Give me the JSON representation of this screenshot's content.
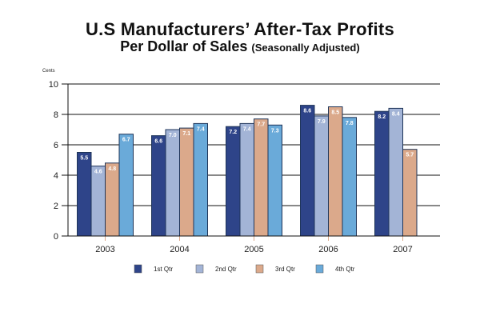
{
  "chart_data": {
    "type": "bar",
    "title": "U.S Manufacturers’ After-Tax Profits",
    "subtitle_main": "Per Dollar of Sales",
    "subtitle_note": "(Seasonally Adjusted)",
    "ylabel": "Cents",
    "xlabel": "",
    "ylim": [
      0,
      10
    ],
    "yticks": [
      0,
      2,
      4,
      6,
      8,
      10
    ],
    "grid": true,
    "legend_position": "bottom",
    "categories": [
      "2003",
      "2004",
      "2005",
      "2006",
      "2007"
    ],
    "series": [
      {
        "name": "1st Qtr",
        "color": "#2e4489",
        "values": [
          5.5,
          6.6,
          7.2,
          8.6,
          8.2
        ]
      },
      {
        "name": "2nd Qtr",
        "color": "#a3b4d6",
        "values": [
          4.6,
          7.0,
          7.4,
          7.9,
          8.4
        ]
      },
      {
        "name": "3rd Qtr",
        "color": "#dba98b",
        "values": [
          4.8,
          7.1,
          7.7,
          8.5,
          5.7
        ]
      },
      {
        "name": "4th Qtr",
        "color": "#6aaad9",
        "values": [
          6.7,
          7.4,
          7.3,
          7.8,
          null
        ]
      }
    ]
  }
}
